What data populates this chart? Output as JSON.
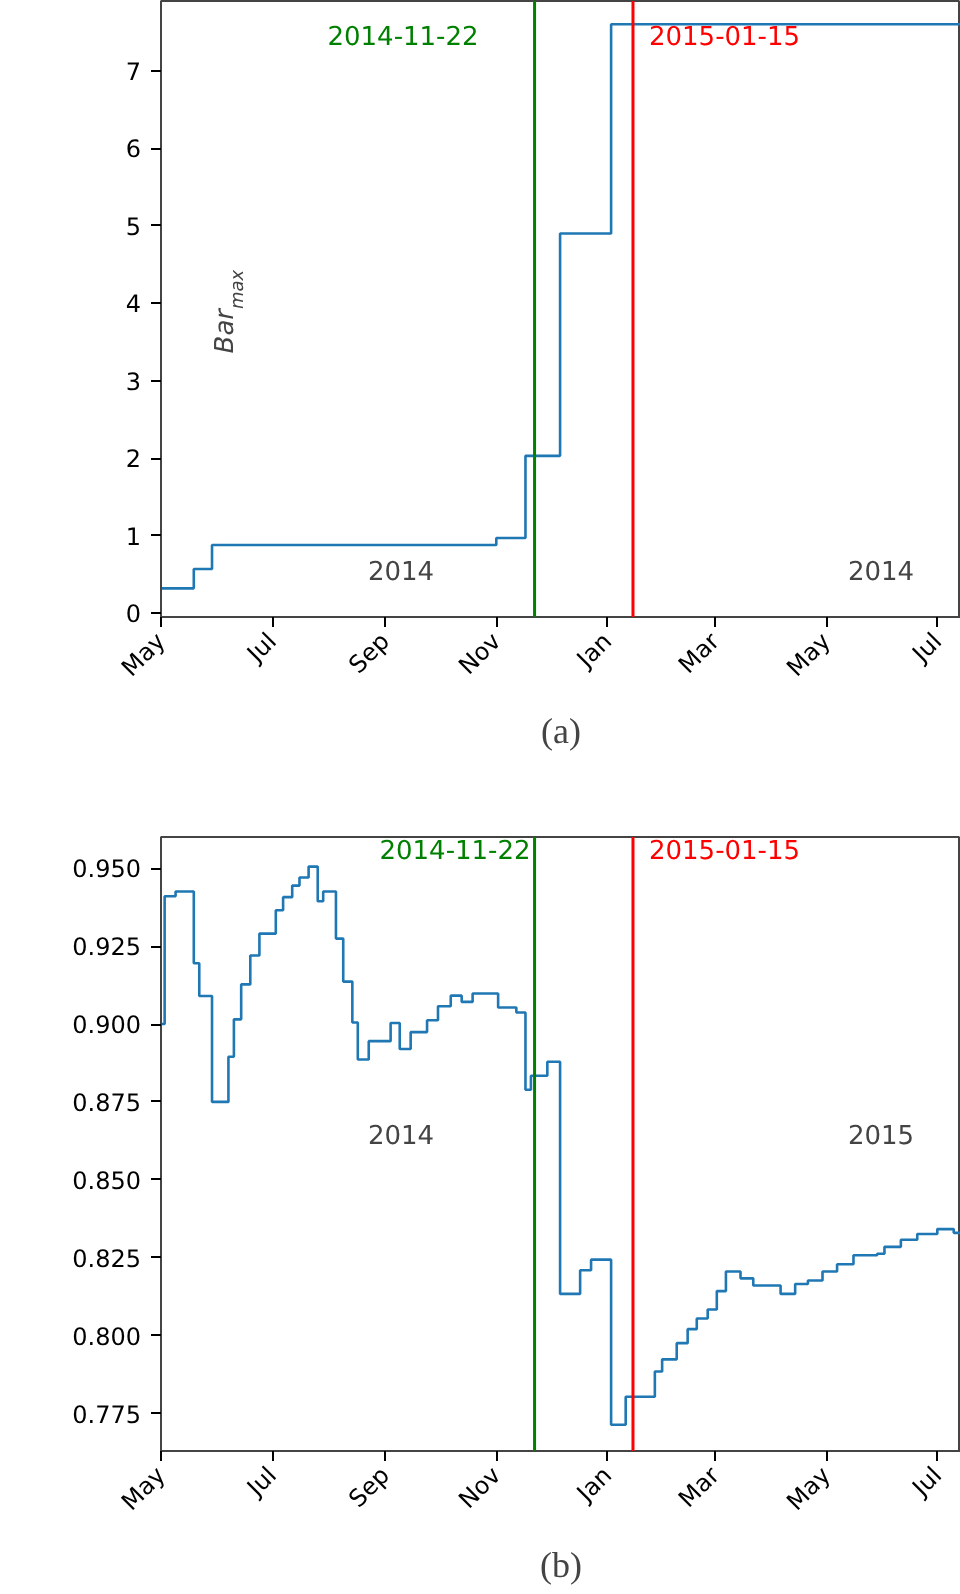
{
  "chart_data": [
    {
      "type": "step",
      "ylabel": "Bar$_{max}$",
      "x": [
        "2014-05-01",
        "2014-05-19",
        "2014-05-29",
        "2014-11-01",
        "2014-11-17",
        "2014-12-06",
        "2015-01-03",
        "2015-07-14"
      ],
      "series": [
        {
          "color": "#1f77b4",
          "values": [
            0.32,
            0.57,
            0.88,
            0.97,
            2.03,
            4.9,
            7.6,
            7.6
          ]
        }
      ],
      "xlim": [
        "2014-05-01",
        "2015-07-14"
      ],
      "ylim": [
        -0.05,
        7.9
      ],
      "yticks": [
        0,
        1,
        2,
        3,
        4,
        5,
        6,
        7
      ],
      "xticks": [
        {
          "value": "2014-05-01",
          "label": "May"
        },
        {
          "value": "2014-07-01",
          "label": "Jul"
        },
        {
          "value": "2014-09-01",
          "label": "Sep"
        },
        {
          "value": "2014-11-01",
          "label": "Nov"
        },
        {
          "value": "2015-01-01",
          "label": "Jan"
        },
        {
          "value": "2015-03-01",
          "label": "Mar"
        },
        {
          "value": "2015-05-01",
          "label": "May"
        },
        {
          "value": "2015-07-01",
          "label": "Jul"
        }
      ],
      "ref_lines": [
        {
          "axis": "x",
          "value": "2014-11-22",
          "label": "2014-11-22",
          "color": "#008000"
        },
        {
          "axis": "x",
          "value": "2015-01-15",
          "label": "2015-01-15",
          "color": "#ff0000"
        }
      ],
      "annotations": [
        "2014",
        "2014",
        "(a)"
      ],
      "grid": false
    },
    {
      "type": "step",
      "x": [
        "2014-05-01",
        "2014-05-03",
        "2014-05-09",
        "2014-05-19",
        "2014-05-22",
        "2014-05-29",
        "2014-06-07",
        "2014-06-10",
        "2014-06-14",
        "2014-06-19",
        "2014-06-24",
        "2014-07-03",
        "2014-07-07",
        "2014-07-12",
        "2014-07-16",
        "2014-07-21",
        "2014-07-26",
        "2014-07-29",
        "2014-08-05",
        "2014-08-09",
        "2014-08-14",
        "2014-08-17",
        "2014-08-23",
        "2014-09-04",
        "2014-09-09",
        "2014-09-15",
        "2014-09-24",
        "2014-09-30",
        "2014-10-07",
        "2014-10-13",
        "2014-10-19",
        "2014-11-02",
        "2014-11-12",
        "2014-11-17",
        "2014-11-20",
        "2014-11-29",
        "2014-12-06",
        "2014-12-17",
        "2014-12-23",
        "2015-01-03",
        "2015-01-11",
        "2015-01-27",
        "2015-01-31",
        "2015-02-08",
        "2015-02-14",
        "2015-02-19",
        "2015-02-25",
        "2015-03-02",
        "2015-03-07",
        "2015-03-15",
        "2015-03-22",
        "2015-04-06",
        "2015-04-14",
        "2015-04-21",
        "2015-04-29",
        "2015-05-07",
        "2015-05-16",
        "2015-05-29",
        "2015-06-02",
        "2015-06-11",
        "2015-06-20",
        "2015-07-01",
        "2015-07-10",
        "2015-07-14"
      ],
      "series": [
        {
          "color": "#1f77b4",
          "values": [
            0.9,
            0.941,
            0.9425,
            0.9195,
            0.909,
            0.875,
            0.8895,
            0.9015,
            0.9127,
            0.922,
            0.929,
            0.9365,
            0.9407,
            0.9444,
            0.947,
            0.9505,
            0.9394,
            0.9425,
            0.9274,
            0.9136,
            0.9005,
            0.8886,
            0.8945,
            0.9003,
            0.892,
            0.8974,
            0.9012,
            0.9057,
            0.9091,
            0.9071,
            0.9098,
            0.9053,
            0.9037,
            0.8789,
            0.8834,
            0.8879,
            0.8134,
            0.821,
            0.8244,
            0.7714,
            0.7804,
            0.7885,
            0.7924,
            0.7976,
            0.8021,
            0.8055,
            0.8084,
            0.8143,
            0.8206,
            0.8184,
            0.8161,
            0.8134,
            0.8166,
            0.8177,
            0.8206,
            0.8229,
            0.8258,
            0.8263,
            0.8285,
            0.8308,
            0.8326,
            0.8342,
            0.833,
            0.833
          ]
        }
      ],
      "xlim": [
        "2014-05-01",
        "2015-07-14"
      ],
      "ylim": [
        0.763,
        0.96
      ],
      "yticks": [
        {
          "value": 0.775,
          "label": "0.775"
        },
        {
          "value": 0.8,
          "label": "0.800"
        },
        {
          "value": 0.825,
          "label": "0.825"
        },
        {
          "value": 0.85,
          "label": "0.850"
        },
        {
          "value": 0.875,
          "label": "0.875"
        },
        {
          "value": 0.9,
          "label": "0.900"
        },
        {
          "value": 0.925,
          "label": "0.925"
        },
        {
          "value": 0.95,
          "label": "0.950"
        }
      ],
      "xticks": [
        {
          "value": "2014-05-01",
          "label": "May"
        },
        {
          "value": "2014-07-01",
          "label": "Jul"
        },
        {
          "value": "2014-09-01",
          "label": "Sep"
        },
        {
          "value": "2014-11-01",
          "label": "Nov"
        },
        {
          "value": "2015-01-01",
          "label": "Jan"
        },
        {
          "value": "2015-03-01",
          "label": "Mar"
        },
        {
          "value": "2015-05-01",
          "label": "May"
        },
        {
          "value": "2015-07-01",
          "label": "Jul"
        }
      ],
      "ref_lines": [
        {
          "axis": "x",
          "value": "2014-11-22",
          "label": "2014-11-22",
          "color": "#008000"
        },
        {
          "axis": "x",
          "value": "2015-01-15",
          "label": "2015-01-15",
          "color": "#ff0000"
        }
      ],
      "annotations": [
        "2014",
        "2015",
        "(b)"
      ],
      "grid": false
    }
  ]
}
